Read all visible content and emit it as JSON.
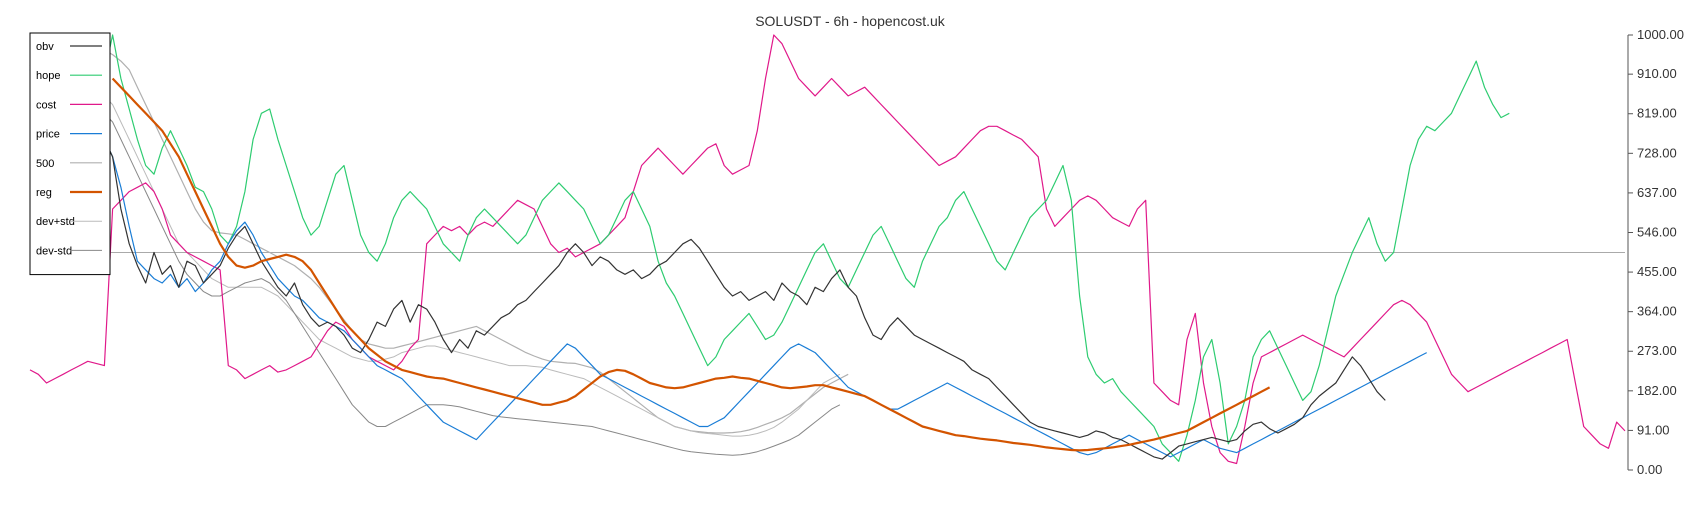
{
  "chart_data": {
    "type": "line",
    "title": "SOLUSDT - 6h - hopencost.uk",
    "ylim": [
      0,
      1000
    ],
    "yticks": [
      "0.00",
      "91.00",
      "182.00",
      "273.00",
      "364.00",
      "455.00",
      "546.00",
      "637.00",
      "728.00",
      "819.00",
      "910.00",
      "1000.00"
    ],
    "grid": false,
    "legend_position": "top-left",
    "reference_line": 500,
    "series": [
      {
        "name": "obv",
        "color": "#333333",
        "width": 1.2,
        "start": 0,
        "values": [
          930,
          860,
          885,
          830,
          870,
          840,
          860,
          810,
          800,
          760,
          720,
          600,
          520,
          470,
          430,
          500,
          450,
          470,
          420,
          480,
          470,
          430,
          450,
          470,
          510,
          540,
          560,
          520,
          480,
          450,
          420,
          400,
          430,
          380,
          350,
          330,
          340,
          330,
          310,
          280,
          270,
          300,
          340,
          330,
          370,
          390,
          340,
          380,
          370,
          340,
          300,
          270,
          300,
          280,
          320,
          310,
          330,
          350,
          360,
          380,
          390,
          410,
          430,
          450,
          470,
          500,
          520,
          500,
          470,
          490,
          480,
          460,
          450,
          460,
          440,
          450,
          470,
          480,
          500,
          520,
          530,
          510,
          480,
          450,
          420,
          400,
          410,
          390,
          400,
          410,
          390,
          430,
          410,
          400,
          380,
          420,
          410,
          440,
          460,
          420,
          400,
          350,
          310,
          300,
          330,
          350,
          330,
          310,
          300,
          290,
          280,
          270,
          260,
          250,
          230,
          220,
          210,
          190,
          170,
          150,
          130,
          110,
          100,
          95,
          90,
          85,
          80,
          75,
          80,
          90,
          85,
          75,
          70,
          60,
          50,
          40,
          30,
          25,
          40,
          55,
          60,
          65,
          70,
          75,
          70,
          65,
          70,
          90,
          105,
          110,
          95,
          85,
          95,
          105,
          120,
          150,
          170,
          185,
          200,
          230,
          260,
          240,
          210,
          180,
          160
        ]
      },
      {
        "name": "hope",
        "color": "#2ecc71",
        "width": 1.2,
        "start": 0,
        "values": [
          930,
          870,
          830,
          780,
          740,
          760,
          800,
          840,
          870,
          910,
          1000,
          900,
          830,
          760,
          700,
          680,
          740,
          780,
          740,
          700,
          650,
          640,
          600,
          540,
          520,
          560,
          640,
          760,
          820,
          830,
          760,
          700,
          640,
          580,
          540,
          560,
          620,
          680,
          700,
          620,
          540,
          500,
          480,
          520,
          580,
          620,
          640,
          620,
          600,
          560,
          520,
          500,
          480,
          540,
          580,
          600,
          580,
          560,
          540,
          520,
          540,
          580,
          620,
          640,
          660,
          640,
          620,
          600,
          560,
          520,
          540,
          580,
          620,
          640,
          600,
          560,
          480,
          430,
          400,
          360,
          320,
          280,
          240,
          260,
          300,
          320,
          340,
          360,
          330,
          300,
          310,
          340,
          380,
          420,
          460,
          500,
          520,
          480,
          440,
          420,
          460,
          500,
          540,
          560,
          520,
          480,
          440,
          420,
          480,
          520,
          560,
          580,
          620,
          640,
          600,
          560,
          520,
          480,
          460,
          500,
          540,
          580,
          600,
          620,
          660,
          700,
          620,
          400,
          260,
          220,
          200,
          210,
          180,
          160,
          140,
          120,
          100,
          60,
          40,
          20,
          80,
          160,
          260,
          300,
          200,
          60,
          100,
          160,
          260,
          300,
          320,
          280,
          240,
          200,
          160,
          180,
          240,
          320,
          400,
          450,
          500,
          540,
          580,
          520,
          480,
          500,
          600,
          700,
          760,
          790,
          780,
          800,
          820,
          860,
          900,
          940,
          880,
          840,
          810,
          820
        ]
      },
      {
        "name": "cost",
        "color": "#e0198a",
        "width": 1.2,
        "start": 0,
        "values": [
          230,
          220,
          200,
          210,
          220,
          230,
          240,
          250,
          245,
          240,
          600,
          620,
          640,
          650,
          660,
          640,
          600,
          540,
          520,
          500,
          490,
          480,
          470,
          460,
          240,
          230,
          210,
          220,
          230,
          240,
          225,
          230,
          240,
          250,
          260,
          290,
          320,
          340,
          330,
          300,
          280,
          260,
          250,
          240,
          230,
          250,
          280,
          300,
          520,
          540,
          560,
          550,
          560,
          540,
          560,
          570,
          560,
          580,
          600,
          620,
          610,
          600,
          560,
          520,
          500,
          510,
          490,
          500,
          510,
          520,
          540,
          560,
          580,
          640,
          700,
          720,
          740,
          720,
          700,
          680,
          700,
          720,
          740,
          750,
          700,
          680,
          690,
          700,
          780,
          900,
          1000,
          980,
          940,
          900,
          880,
          860,
          880,
          900,
          880,
          860,
          870,
          880,
          860,
          840,
          820,
          800,
          780,
          760,
          740,
          720,
          700,
          710,
          720,
          740,
          760,
          780,
          790,
          790,
          780,
          770,
          760,
          740,
          720,
          600,
          560,
          580,
          600,
          620,
          630,
          620,
          600,
          580,
          570,
          560,
          600,
          620,
          200,
          180,
          160,
          150,
          300,
          360,
          200,
          100,
          40,
          20,
          15,
          100,
          200,
          260,
          270,
          280,
          290,
          300,
          310,
          300,
          290,
          280,
          270,
          260,
          280,
          300,
          320,
          340,
          360,
          380,
          390,
          380,
          360,
          340,
          300,
          260,
          220,
          200,
          180,
          190,
          200,
          210,
          220,
          230,
          240,
          250,
          260,
          270,
          280,
          290,
          300,
          200,
          100,
          80,
          60,
          50,
          110,
          90
        ]
      },
      {
        "name": "price",
        "color": "#1a7dd6",
        "width": 1.2,
        "start": 0,
        "values": [
          920,
          780,
          820,
          770,
          800,
          810,
          790,
          800,
          780,
          760,
          720,
          650,
          560,
          480,
          460,
          440,
          430,
          450,
          420,
          440,
          410,
          430,
          460,
          480,
          520,
          550,
          570,
          540,
          500,
          470,
          440,
          420,
          400,
          390,
          370,
          350,
          340,
          330,
          320,
          300,
          280,
          260,
          240,
          230,
          220,
          210,
          190,
          170,
          150,
          130,
          110,
          100,
          90,
          80,
          70,
          90,
          110,
          130,
          150,
          170,
          190,
          210,
          230,
          250,
          270,
          290,
          280,
          260,
          240,
          220,
          210,
          200,
          190,
          180,
          170,
          160,
          150,
          140,
          130,
          120,
          110,
          100,
          100,
          110,
          120,
          140,
          160,
          180,
          200,
          220,
          240,
          260,
          280,
          290,
          280,
          270,
          250,
          230,
          210,
          190,
          180,
          170,
          160,
          150,
          140,
          140,
          150,
          160,
          170,
          180,
          190,
          200,
          190,
          180,
          170,
          160,
          150,
          140,
          130,
          120,
          110,
          100,
          90,
          80,
          70,
          60,
          50,
          40,
          35,
          40,
          50,
          60,
          70,
          80,
          70,
          60,
          50,
          40,
          30,
          40,
          50,
          60,
          70,
          60,
          50,
          45,
          40,
          50,
          60,
          70,
          80,
          90,
          100,
          110,
          120,
          130,
          140,
          150,
          160,
          170,
          180,
          190,
          200,
          210,
          220,
          230,
          240,
          250,
          260,
          270
        ]
      },
      {
        "name": "500",
        "color": "#b0b0b0",
        "width": 1.2,
        "start": 8,
        "values": [
          970,
          965,
          955,
          940,
          920,
          880,
          840,
          800,
          760,
          720,
          680,
          640,
          600,
          570,
          550,
          545,
          543,
          540,
          530,
          520,
          510,
          500,
          490,
          480,
          470,
          455,
          440,
          420,
          395,
          370,
          345,
          320,
          300,
          290,
          285,
          280,
          280,
          285,
          290,
          295,
          300,
          305,
          310,
          315,
          320,
          325,
          330,
          320,
          310,
          300,
          290,
          280,
          270,
          262,
          255,
          250,
          248,
          246,
          245,
          240,
          235,
          225,
          210,
          195,
          180,
          165,
          150,
          135,
          120,
          110,
          100,
          95,
          90,
          88,
          86,
          85,
          85,
          86,
          88,
          92,
          98,
          105,
          112,
          120,
          130,
          145,
          160,
          175,
          190,
          200,
          210,
          220
        ]
      },
      {
        "name": "reg",
        "color": "#d35400",
        "width": 2.2,
        "start": 10,
        "values": [
          900,
          880,
          860,
          840,
          820,
          800,
          780,
          750,
          720,
          680,
          640,
          600,
          560,
          520,
          490,
          470,
          465,
          470,
          480,
          485,
          490,
          495,
          490,
          480,
          460,
          430,
          400,
          370,
          340,
          320,
          300,
          280,
          265,
          250,
          240,
          230,
          225,
          220,
          215,
          212,
          210,
          205,
          200,
          195,
          190,
          185,
          180,
          175,
          170,
          165,
          160,
          155,
          150,
          150,
          155,
          160,
          170,
          185,
          200,
          215,
          225,
          230,
          228,
          220,
          210,
          200,
          195,
          190,
          188,
          190,
          195,
          200,
          205,
          210,
          212,
          215,
          212,
          210,
          205,
          200,
          195,
          190,
          188,
          190,
          192,
          195,
          195,
          190,
          185,
          180,
          175,
          170,
          160,
          150,
          140,
          130,
          120,
          110,
          100,
          95,
          90,
          85,
          80,
          78,
          75,
          72,
          70,
          68,
          65,
          62,
          60,
          58,
          55,
          52,
          50,
          48,
          46,
          45,
          46,
          48,
          50,
          52,
          55,
          58,
          62,
          66,
          70,
          75,
          80,
          85,
          90,
          100,
          110,
          120,
          130,
          140,
          150,
          160,
          170,
          180,
          190
        ]
      },
      {
        "name": "dev+std",
        "color": "#bbbbbb",
        "width": 1.0,
        "start": 8,
        "values": [
          880,
          860,
          840,
          800,
          760,
          720,
          680,
          640,
          600,
          560,
          520,
          500,
          480,
          460,
          440,
          430,
          420,
          420,
          420,
          420,
          420,
          410,
          400,
          380,
          360,
          340,
          320,
          300,
          290,
          280,
          270,
          260,
          255,
          250,
          250,
          255,
          260,
          270,
          275,
          280,
          285,
          285,
          280,
          275,
          270,
          265,
          260,
          255,
          250,
          245,
          240,
          240,
          240,
          238,
          236,
          230,
          225,
          220,
          215,
          210,
          200,
          190,
          180,
          170,
          160,
          150,
          140,
          130,
          120,
          110,
          100,
          95,
          90,
          86,
          84,
          82,
          80,
          78,
          78,
          80,
          84,
          90,
          98,
          110,
          125,
          140,
          160,
          180,
          200,
          210,
          220
        ]
      },
      {
        "name": "dev-std",
        "color": "#888888",
        "width": 1.0,
        "start": 8,
        "values": [
          840,
          820,
          800,
          760,
          720,
          680,
          640,
          600,
          560,
          520,
          480,
          450,
          430,
          410,
          400,
          400,
          410,
          420,
          430,
          435,
          440,
          430,
          410,
          390,
          360,
          330,
          300,
          270,
          240,
          210,
          180,
          150,
          130,
          110,
          100,
          100,
          110,
          120,
          130,
          140,
          150,
          150,
          150,
          148,
          145,
          140,
          135,
          130,
          125,
          122,
          120,
          118,
          116,
          114,
          112,
          110,
          108,
          106,
          104,
          102,
          100,
          95,
          90,
          85,
          80,
          75,
          70,
          65,
          60,
          55,
          50,
          45,
          42,
          40,
          38,
          36,
          35,
          34,
          35,
          38,
          42,
          48,
          55,
          62,
          70,
          80,
          95,
          110,
          125,
          140,
          150
        ]
      }
    ]
  }
}
